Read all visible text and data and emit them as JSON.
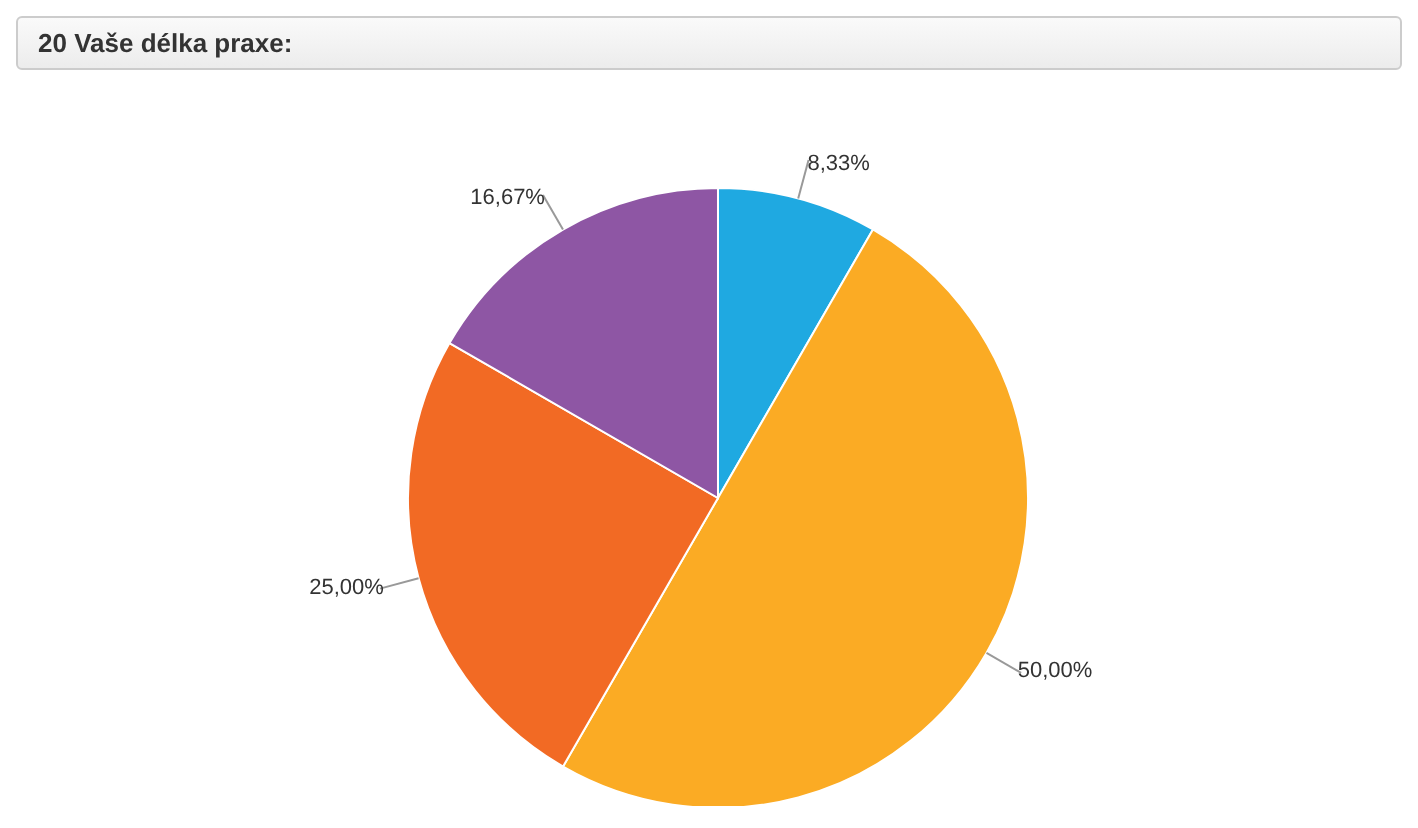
{
  "chart_data": {
    "type": "pie",
    "title": "20 Vaše délka praxe:",
    "categories": [
      null,
      null,
      null,
      null
    ],
    "values": [
      8.33,
      50,
      25,
      16.67
    ],
    "colors": [
      "#1fa9e1",
      "#fbab24",
      "#f26a24",
      "#8e56a4"
    ],
    "value_labels": [
      "8,33%",
      "50,00%",
      "25,00%",
      "16,67%"
    ],
    "legend": false
  }
}
